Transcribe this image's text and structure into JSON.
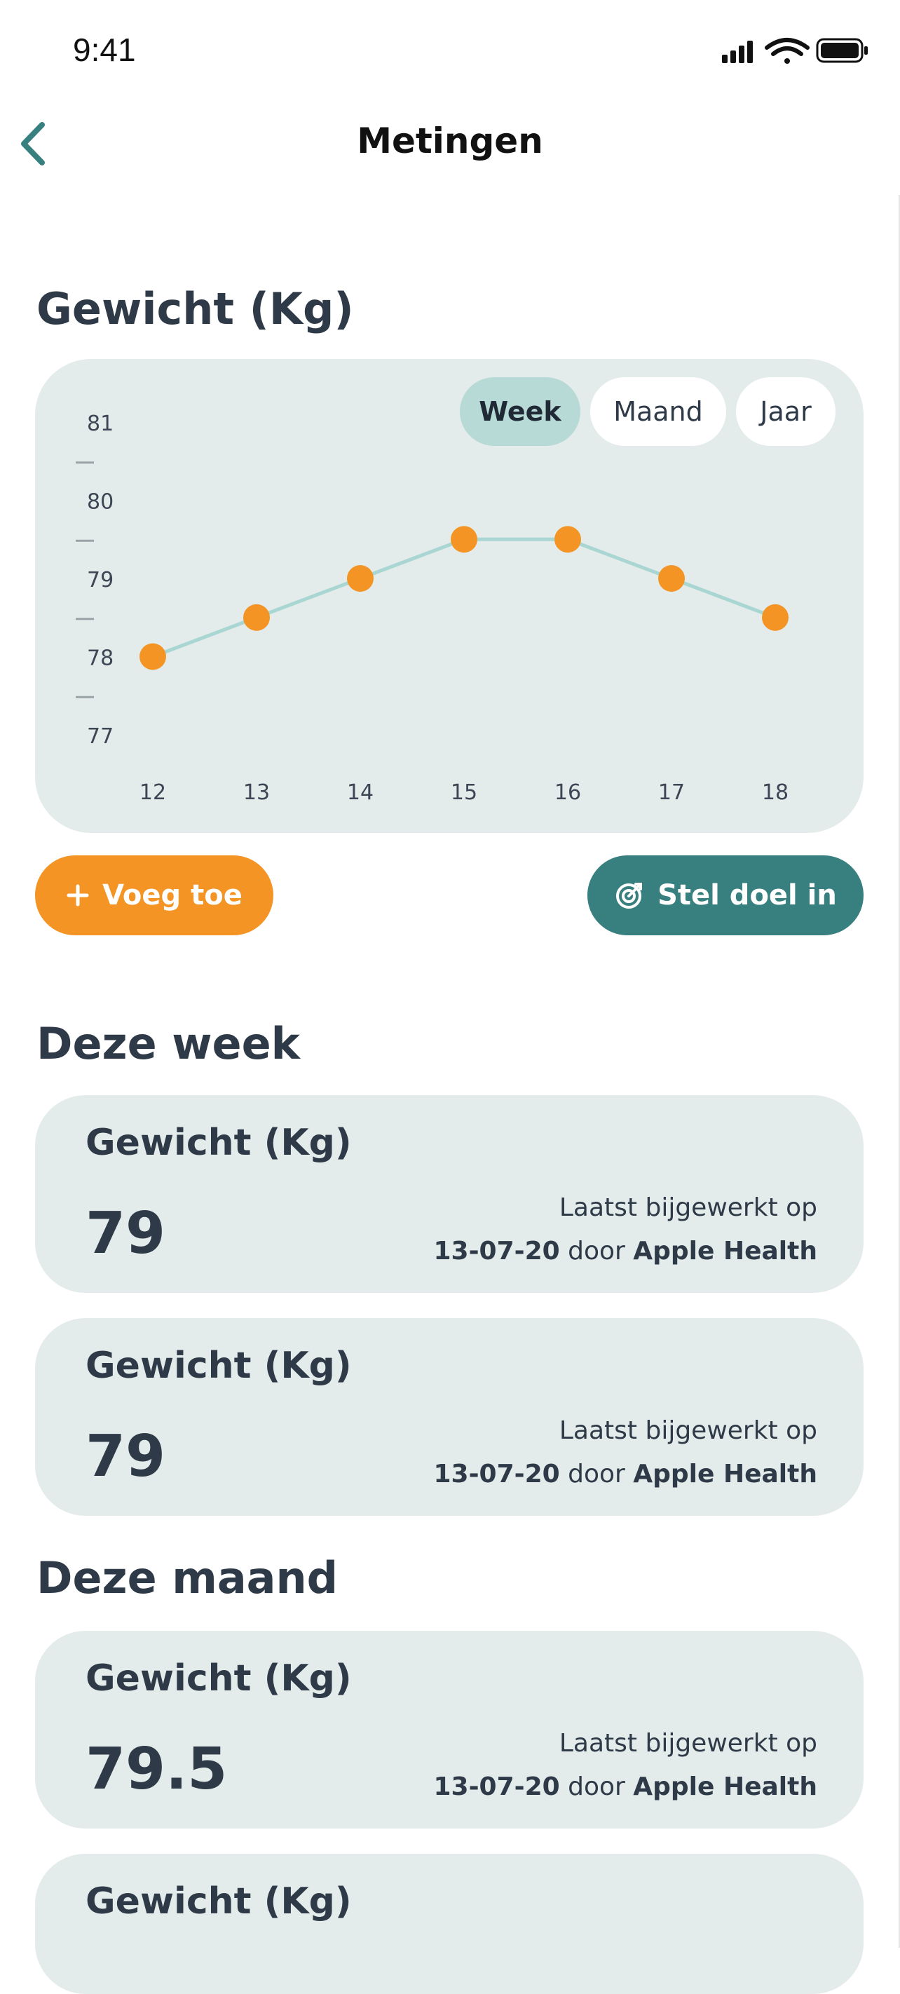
{
  "status_bar": {
    "time": "9:41"
  },
  "nav": {
    "title": "Metingen"
  },
  "weight_section": {
    "title": "Gewicht (Kg)"
  },
  "periods": [
    {
      "label": "Week",
      "active": true
    },
    {
      "label": "Maand",
      "active": false
    },
    {
      "label": "Jaar",
      "active": false
    }
  ],
  "chart_data": {
    "type": "line",
    "x": [
      "12",
      "13",
      "14",
      "15",
      "16",
      "17",
      "18"
    ],
    "series": [
      {
        "values": [
          78.0,
          78.5,
          79.0,
          79.5,
          79.5,
          79.0,
          78.5
        ]
      }
    ],
    "yticks": [
      "81",
      "80",
      "79",
      "78",
      "77"
    ],
    "ylim": [
      77,
      81
    ],
    "grid": false,
    "line_color": "#a9d6d2",
    "point_color": "#f39425"
  },
  "actions": {
    "add_label": "Voeg toe",
    "goal_label": "Stel doel in"
  },
  "sections": [
    {
      "title": "Deze week"
    },
    {
      "title": "Deze maand"
    }
  ],
  "cards": [
    {
      "title": "Gewicht (Kg)",
      "value": "79",
      "updated_prefix": "Laatst bijgewerkt op",
      "date": "13-07-20",
      "by": "door",
      "source": "Apple Health"
    },
    {
      "title": "Gewicht (Kg)",
      "value": "79",
      "updated_prefix": "Laatst bijgewerkt op",
      "date": "13-07-20",
      "by": "door",
      "source": "Apple Health"
    },
    {
      "title": "Gewicht (Kg)",
      "value": "79.5",
      "updated_prefix": "Laatst bijgewerkt op",
      "date": "13-07-20",
      "by": "door",
      "source": "Apple Health"
    },
    {
      "title": "Gewicht (Kg)"
    }
  ],
  "colors": {
    "accent_orange": "#f39425",
    "accent_teal": "#37807f",
    "card_bg": "#e3ecea"
  }
}
